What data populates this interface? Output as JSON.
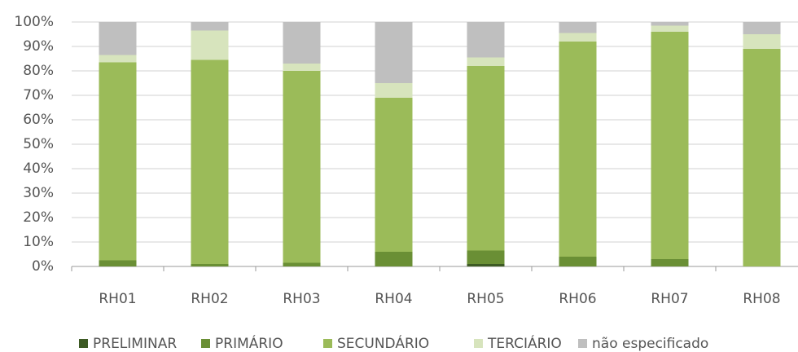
{
  "chart_data": {
    "type": "stacked_bar",
    "categories": [
      "RH01",
      "RH02",
      "RH03",
      "RH04",
      "RH05",
      "RH06",
      "RH07",
      "RH08"
    ],
    "series": [
      {
        "name": "PRELIMINAR",
        "color": "#3d5a24",
        "values": [
          0,
          0,
          0,
          0,
          1,
          0,
          0,
          0
        ]
      },
      {
        "name": "PRIMÁRIO",
        "color": "#6a8f35",
        "values": [
          2.5,
          1,
          1.5,
          6,
          5.5,
          4,
          3,
          0
        ]
      },
      {
        "name": "SECUNDÁRIO",
        "color": "#9bbb59",
        "values": [
          81,
          83.5,
          78.5,
          63,
          75.5,
          88,
          93,
          89
        ]
      },
      {
        "name": "TERCIÁRIO",
        "color": "#d7e4bd",
        "values": [
          3,
          12,
          3,
          6,
          3.5,
          3.5,
          2.5,
          6
        ]
      },
      {
        "name": "não especificado",
        "color": "#bfbfbf",
        "values": [
          13.5,
          3.5,
          17,
          25,
          14.5,
          4.5,
          1.5,
          5
        ]
      }
    ],
    "ylim": [
      0,
      100
    ],
    "yticks": [
      {
        "value": 0,
        "label": "0%"
      },
      {
        "value": 10,
        "label": "10%"
      },
      {
        "value": 20,
        "label": "20%"
      },
      {
        "value": 30,
        "label": "30%"
      },
      {
        "value": 40,
        "label": "40%"
      },
      {
        "value": 50,
        "label": "50%"
      },
      {
        "value": 60,
        "label": "60%"
      },
      {
        "value": 70,
        "label": "70%"
      },
      {
        "value": 80,
        "label": "80%"
      },
      {
        "value": 90,
        "label": "90%"
      },
      {
        "value": 100,
        "label": "100%"
      }
    ],
    "grid": true,
    "legend": "bottom"
  }
}
